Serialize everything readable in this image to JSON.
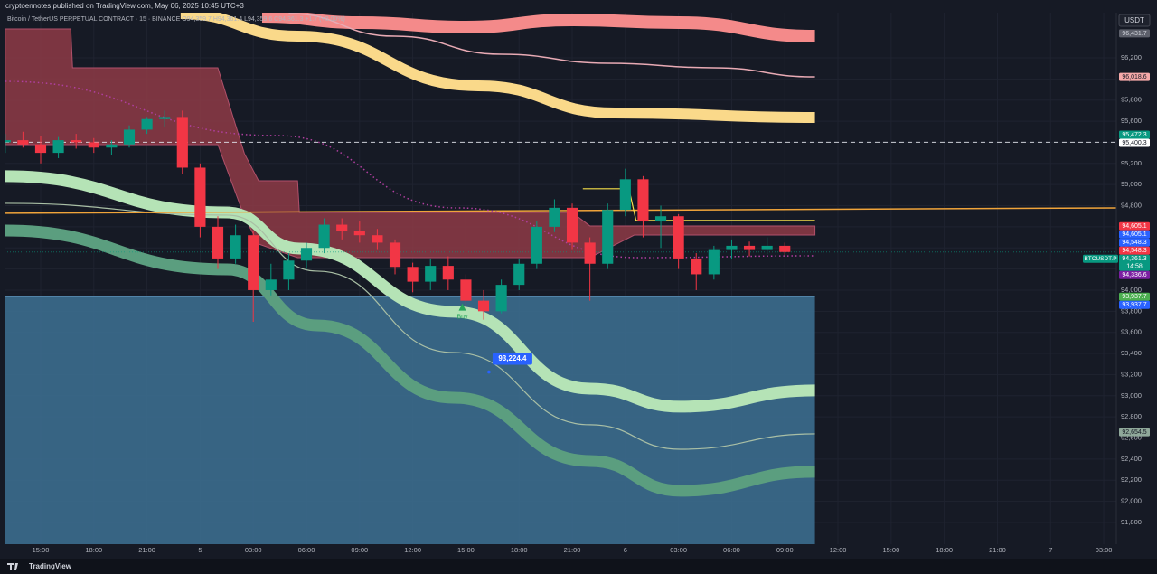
{
  "chart_data": {
    "type": "candlestick",
    "header": "cryptoennotes published on TradingView.com, May 06, 2025 10:45 UTC+3",
    "legend": "Bitcoin / TetherUS PERPETUAL CONTRACT · 15 · BINANCE   O94,359.7  H94,361.4  L94,359.6  C94,361.3  +1.7 (+0.00%)",
    "currency": "USDT",
    "footer": "TradingView",
    "up_color": "#089981",
    "down_color": "#f23645",
    "grid": true,
    "xlim": [
      12.96,
      75.71
    ],
    "ylim": [
      91594,
      96628
    ],
    "xticks": [
      {
        "value": 15,
        "label": "15:00"
      },
      {
        "value": 18,
        "label": "18:00"
      },
      {
        "value": 21,
        "label": "21:00"
      },
      {
        "value": 24,
        "label": "5"
      },
      {
        "value": 27,
        "label": "03:00"
      },
      {
        "value": 30,
        "label": "06:00"
      },
      {
        "value": 33,
        "label": "09:00"
      },
      {
        "value": 36,
        "label": "12:00"
      },
      {
        "value": 39,
        "label": "15:00"
      },
      {
        "value": 42,
        "label": "18:00"
      },
      {
        "value": 45,
        "label": "21:00"
      },
      {
        "value": 48,
        "label": "6"
      },
      {
        "value": 51,
        "label": "03:00"
      },
      {
        "value": 54,
        "label": "06:00"
      },
      {
        "value": 57,
        "label": "09:00"
      },
      {
        "value": 60,
        "label": "12:00"
      },
      {
        "value": 63,
        "label": "15:00"
      },
      {
        "value": 66,
        "label": "18:00"
      },
      {
        "value": 69,
        "label": "21:00"
      },
      {
        "value": 72,
        "label": "7"
      },
      {
        "value": 75,
        "label": "03:00"
      }
    ],
    "yticks": [
      {
        "value": 91800,
        "label": "91,800"
      },
      {
        "value": 92000,
        "label": "92,000"
      },
      {
        "value": 92200,
        "label": "92,200"
      },
      {
        "value": 92400,
        "label": "92,400"
      },
      {
        "value": 92600,
        "label": "92,600"
      },
      {
        "value": 92800,
        "label": "92,800"
      },
      {
        "value": 93000,
        "label": "93,000"
      },
      {
        "value": 93200,
        "label": "93,200"
      },
      {
        "value": 93400,
        "label": "93,400"
      },
      {
        "value": 93600,
        "label": "93,600"
      },
      {
        "value": 93800,
        "label": "93,800"
      },
      {
        "value": 94000,
        "label": "94,000"
      },
      {
        "value": 94200,
        "label": "94,200"
      },
      {
        "value": 94400,
        "label": "94,400"
      },
      {
        "value": 94600,
        "label": "94,600"
      },
      {
        "value": 94800,
        "label": "94,800"
      },
      {
        "value": 95000,
        "label": "95,000"
      },
      {
        "value": 95200,
        "label": "95,200"
      },
      {
        "value": 95400,
        "label": "95,400"
      },
      {
        "value": 95600,
        "label": "95,600"
      },
      {
        "value": 95800,
        "label": "95,800"
      },
      {
        "value": 96000,
        "label": "96,000"
      },
      {
        "value": 96200,
        "label": "96,200"
      }
    ],
    "x": [
      13,
      14,
      15,
      16,
      17,
      18,
      19,
      20,
      21,
      22,
      23,
      24,
      25,
      26,
      27,
      28,
      29,
      30,
      31,
      32,
      33,
      34,
      35,
      36,
      37,
      38,
      39,
      40,
      41,
      42,
      43,
      44,
      45,
      46,
      47,
      48,
      49,
      50,
      51,
      52,
      53,
      54,
      55,
      56,
      57
    ],
    "open": [
      95400,
      95420,
      95380,
      95300,
      95420,
      95400,
      95350,
      95380,
      95520,
      95620,
      95640,
      95160,
      94600,
      94300,
      94520,
      94000,
      94100,
      94280,
      94400,
      94620,
      94560,
      94520,
      94450,
      94220,
      94080,
      94230,
      94100,
      93900,
      93800,
      94050,
      94250,
      94600,
      94780,
      94450,
      94250,
      94760,
      95050,
      94650,
      94700,
      94300,
      94150,
      94380,
      94420,
      94380,
      94420
    ],
    "high": [
      95480,
      95500,
      95460,
      95450,
      95480,
      95440,
      95420,
      95560,
      95640,
      95700,
      95700,
      95200,
      94700,
      94620,
      94560,
      94250,
      94350,
      94450,
      94680,
      94680,
      94650,
      94580,
      94480,
      94260,
      94300,
      94320,
      94150,
      94000,
      94100,
      94300,
      94650,
      94860,
      94820,
      94500,
      94820,
      95150,
      95080,
      94800,
      94720,
      94350,
      94420,
      94480,
      94460,
      94500,
      94450
    ],
    "low": [
      95300,
      95350,
      95200,
      95250,
      95340,
      95300,
      95280,
      95350,
      95480,
      95550,
      95100,
      94500,
      94200,
      94250,
      93700,
      93950,
      94000,
      94200,
      94350,
      94480,
      94450,
      94380,
      94150,
      93980,
      94000,
      94000,
      93820,
      93720,
      93780,
      94000,
      94200,
      94550,
      94380,
      93900,
      94200,
      94700,
      94500,
      94400,
      94200,
      94000,
      94100,
      94300,
      94320,
      94340,
      94330
    ],
    "close": [
      95420,
      95380,
      95300,
      95420,
      95400,
      95350,
      95380,
      95520,
      95620,
      95640,
      95160,
      94600,
      94300,
      94520,
      94000,
      94100,
      94280,
      94400,
      94620,
      94560,
      94520,
      94450,
      94220,
      94080,
      94230,
      94100,
      93900,
      93800,
      94050,
      94250,
      94600,
      94780,
      94450,
      94250,
      94760,
      95050,
      94650,
      94700,
      94300,
      94150,
      94380,
      94420,
      94380,
      94420,
      94361.3
    ],
    "box": {
      "x": [
        12.96,
        58.7
      ],
      "top": 93937.7,
      "color": "#3b6d8e"
    },
    "cloud": {
      "color": "#8e3b46",
      "edge": "#b0506a",
      "x": [
        13,
        16.7,
        16.8,
        25,
        26.5,
        27.3,
        29.5,
        29.6,
        45,
        46,
        48.5,
        58.7
      ],
      "upper": [
        96474,
        96474,
        96106,
        96106,
        95293,
        95036,
        95036,
        94736,
        94736,
        94608,
        94608,
        94608
      ],
      "lower": [
        95378,
        95378,
        95378,
        95378,
        94694,
        94437,
        94308,
        94308,
        94308,
        94308,
        94522,
        94522
      ]
    },
    "overlays": [
      {
        "color": "#f48a8a",
        "width": 14,
        "x": [
          27.5,
          33,
          39,
          45,
          51,
          58.7
        ],
        "values": [
          96594,
          96534,
          96491,
          96560,
          96534,
          96405
        ]
      },
      {
        "color": "#e8aab4",
        "width": 1.5,
        "x": [
          29,
          35,
          41,
          47,
          53,
          58.7
        ],
        "values": [
          96620,
          96405,
          96234,
          96149,
          96106,
          96020
        ]
      },
      {
        "color": "#fad98a",
        "width": 12,
        "x": [
          22.9,
          29.5,
          39.7,
          47.4,
          58.7
        ],
        "values": [
          96619,
          96405,
          95935,
          95678,
          95635
        ]
      },
      {
        "color": "#5b9e7f",
        "width": 13,
        "x": [
          13,
          25.5,
          30.6,
          38.3,
          46,
          51.1,
          58.7
        ],
        "values": [
          94565,
          94197,
          93666,
          92981,
          92382,
          92100,
          92280
        ]
      },
      {
        "color": "#b5e3b6",
        "width": 13,
        "x": [
          13,
          25.5,
          29.6,
          38.3,
          46,
          51.1,
          58.7
        ],
        "values": [
          95079,
          94736,
          94394,
          93795,
          93067,
          92896,
          93050
        ]
      },
      {
        "color": "#a9bfa5",
        "width": 1.2,
        "x": [
          13,
          25.5,
          30.6,
          38.3,
          46,
          51.1,
          58.7
        ],
        "values": [
          94822,
          94711,
          94180,
          93409,
          92725,
          92493,
          92639
        ]
      },
      {
        "color": "#f0a43a",
        "width": 1.5,
        "x": [
          12.96,
          75.71
        ],
        "values": [
          94728,
          94779
        ]
      },
      {
        "color": "#b03fa0",
        "width": 1.5,
        "dash": true,
        "x": [
          13,
          28.3,
          38.5,
          48.7,
          58.7
        ],
        "values": [
          95977,
          95464,
          94779,
          94308,
          94325
        ]
      },
      {
        "color": "#f5e04a",
        "width": 1.2,
        "x": [
          45.6,
          48.2,
          48.6,
          58.7
        ],
        "values": [
          94960,
          94960,
          94660,
          94660
        ]
      }
    ],
    "hlines": [
      {
        "value": 95400.3,
        "color": "#e0e3eb",
        "dash": true
      },
      {
        "value": 94361.3,
        "color": "#089981",
        "dash": true
      }
    ],
    "annotation": {
      "x": 40.3,
      "value": 93224.4,
      "label": "93,224.4",
      "color": "#2962ff"
    },
    "signal": {
      "x": 38.8,
      "value": 93840,
      "text": "Buy",
      "color": "#26a65b"
    },
    "price_labels": [
      {
        "value": 96431.7,
        "label": "96,431.7",
        "color": "#5d606b",
        "text_color": "#d1d4dc"
      },
      {
        "value": 96018.6,
        "label": "96,018.6",
        "color": "#f5a9a9",
        "text_color": "#131722"
      },
      {
        "value": 95472.3,
        "label": "95,472.3",
        "color": "#089981",
        "text_color": "#ffffff"
      },
      {
        "value": 95400.3,
        "label": "95,400.3",
        "color": "#ffffff",
        "text_color": "#131722"
      },
      {
        "value": 94605.1,
        "label": "94,605.1",
        "color": "#f23645",
        "text_color": "#ffffff"
      },
      {
        "value": 94605.1,
        "label": "94,605.1",
        "color": "#2962ff",
        "text_color": "#ffffff"
      },
      {
        "value": 94548.3,
        "label": "94,548.3",
        "color": "#2962ff",
        "text_color": "#ffffff"
      },
      {
        "value": 94548.3,
        "label": "94,548.3",
        "color": "#f23645",
        "text_color": "#ffffff"
      },
      {
        "value": 94361.3,
        "label": "94,361.3",
        "color": "#089981",
        "text_color": "#ffffff",
        "symbol": "BTCUSDT.P",
        "sub": "14:58"
      },
      {
        "value": 94336.6,
        "label": "94,336.6",
        "color": "#7b1fa2",
        "text_color": "#ffffff"
      },
      {
        "value": 93937.7,
        "label": "93,937.7",
        "color": "#4caf50",
        "text_color": "#ffffff"
      },
      {
        "value": 93937.7,
        "label": "93,937.7",
        "color": "#2962ff",
        "text_color": "#ffffff"
      },
      {
        "value": 92654.5,
        "label": "92,654.5",
        "color": "#8fa89a",
        "text_color": "#131722"
      }
    ]
  }
}
